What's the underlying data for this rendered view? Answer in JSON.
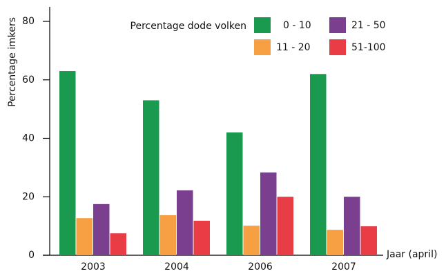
{
  "chart_data": {
    "type": "bar",
    "y_label": "Percentage imkers",
    "x_label": "Jaar (april)",
    "legend_title": "Percentage dode volken",
    "categories": [
      "2003",
      "2004",
      "2006",
      "2007"
    ],
    "series": [
      {
        "name": "0 - 10",
        "color": "#1a9a4f",
        "values": [
          63,
          53,
          42,
          62
        ]
      },
      {
        "name": "11 - 20",
        "color": "#f7a043",
        "values": [
          12.7,
          13.7,
          10.1,
          8.7
        ]
      },
      {
        "name": "21 - 50",
        "color": "#7b3f8f",
        "values": [
          17.5,
          22.2,
          28.3,
          20
        ]
      },
      {
        "name": "51-100",
        "color": "#e93d45",
        "values": [
          7.5,
          11.8,
          20,
          9.9
        ]
      }
    ],
    "ylim": [
      0,
      80
    ],
    "yticks": [
      0,
      20,
      40,
      60,
      80
    ],
    "grid": false
  }
}
